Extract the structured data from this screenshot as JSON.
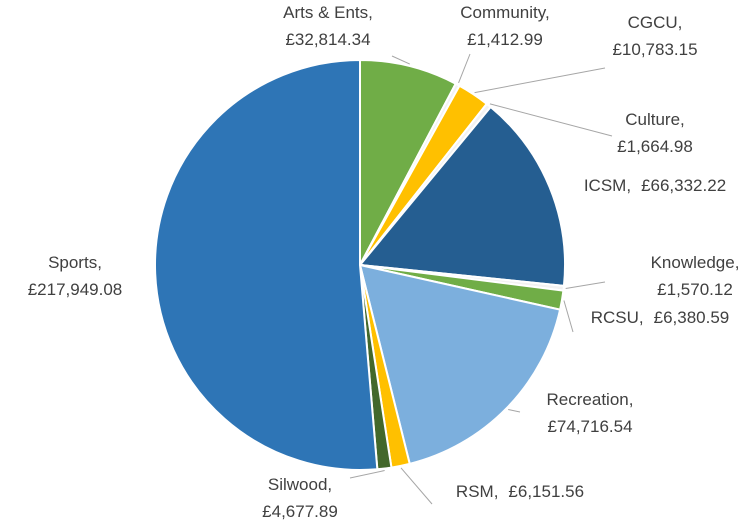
{
  "chart_data": {
    "type": "pie",
    "categories": [
      "Arts & Ents,",
      "Community,",
      "CGCU,",
      "Culture,",
      "ICSM,",
      "Knowledge,",
      "RCSU,",
      "Recreation,",
      "RSM,",
      "Silwood,",
      "Sports,"
    ],
    "values": [
      32814.34,
      1412.99,
      10783.15,
      1664.98,
      66332.22,
      1570.12,
      6380.59,
      74716.54,
      6151.56,
      4677.89,
      217949.08
    ],
    "value_labels": [
      "£32,814.34",
      "£1,412.99",
      "£10,783.15",
      "£1,664.98",
      "£66,332.22",
      "£1,570.12",
      "£6,380.59",
      "£74,716.54",
      "£6,151.56",
      "£4,677.89",
      "£217,949.08"
    ],
    "colors": [
      "#70ad47",
      "#f2f2f2",
      "#ffc000",
      "#f2f2f2",
      "#255e91",
      "#f2f2f2",
      "#70ad47",
      "#7cafdd",
      "#ffc000",
      "#43682b",
      "#2e75b6"
    ]
  }
}
